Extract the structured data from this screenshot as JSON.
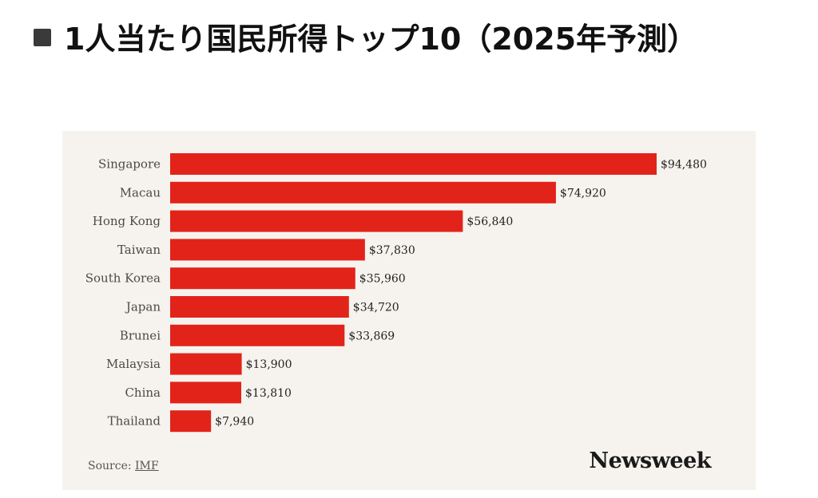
{
  "heading": {
    "icon": "black-square-icon",
    "text": "1人当たり国民所得トップ10（2025年予測）"
  },
  "chart_data": {
    "type": "bar",
    "orientation": "horizontal",
    "categories": [
      "Singapore",
      "Macau",
      "Hong Kong",
      "Taiwan",
      "South Korea",
      "Japan",
      "Brunei",
      "Malaysia",
      "China",
      "Thailand"
    ],
    "values": [
      94480,
      74920,
      56840,
      37830,
      35960,
      34720,
      33869,
      13900,
      13810,
      7940
    ],
    "value_labels": [
      "$94,480",
      "$74,920",
      "$56,840",
      "$37,830",
      "$35,960",
      "$34,720",
      "$33,869",
      "$13,900",
      "$13,810",
      "$7,940"
    ],
    "bar_color": "#e2231a",
    "grid": false,
    "legend": "none",
    "xlim": [
      0,
      94480
    ]
  },
  "footer": {
    "source_prefix": "Source: ",
    "source_name": "IMF",
    "brand": "Newsweek"
  }
}
